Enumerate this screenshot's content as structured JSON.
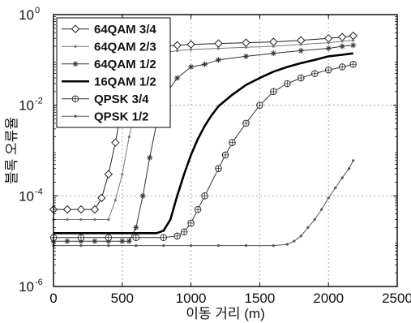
{
  "chart_data": {
    "type": "line",
    "xlabel": "이동 거리 (m)",
    "ylabel": "블록 오류율",
    "xlim": [
      0,
      2500
    ],
    "ylim": [
      1e-06,
      1
    ],
    "yscale": "log",
    "grid": true,
    "legend_position": "top-left",
    "xticks": [
      0,
      500,
      1000,
      1500,
      2000,
      2500
    ],
    "xtick_labels": [
      "0",
      "500",
      "1000",
      "1500",
      "2000",
      "2500"
    ],
    "yticks": [
      1e-06,
      0.0001,
      0.01,
      1
    ],
    "ytick_labels": [
      {
        "base": "10",
        "exp": "-6"
      },
      {
        "base": "10",
        "exp": "-4"
      },
      {
        "base": "10",
        "exp": "-2"
      },
      {
        "base": "10",
        "exp": "0"
      }
    ],
    "series": [
      {
        "name": "64QAM 3/4",
        "marker": "diamond",
        "color": "#222222",
        "width": 1,
        "x": [
          0,
          100,
          200,
          300,
          350,
          400,
          450,
          500,
          550,
          600,
          650,
          700,
          800,
          900,
          1000,
          1200,
          1400,
          1600,
          1800,
          2000,
          2100,
          2180
        ],
        "y": [
          5e-05,
          5e-05,
          5e-05,
          5e-05,
          9e-05,
          0.0003,
          0.0015,
          0.01,
          0.04,
          0.1,
          0.16,
          0.19,
          0.2,
          0.21,
          0.22,
          0.23,
          0.24,
          0.25,
          0.27,
          0.3,
          0.32,
          0.34
        ]
      },
      {
        "name": "64QAM 2/3",
        "marker": "dot",
        "color": "#777777",
        "width": 1,
        "x": [
          0,
          100,
          200,
          300,
          400,
          450,
          500,
          550,
          600,
          650,
          700,
          800,
          900,
          1000,
          1200,
          1400,
          1600,
          1800,
          2000,
          2100,
          2180
        ],
        "y": [
          3e-05,
          3e-05,
          3e-05,
          3e-05,
          3e-05,
          8e-05,
          0.0003,
          0.002,
          0.01,
          0.04,
          0.09,
          0.14,
          0.16,
          0.17,
          0.18,
          0.19,
          0.2,
          0.22,
          0.24,
          0.26,
          0.27
        ]
      },
      {
        "name": "64QAM 1/2",
        "marker": "star",
        "color": "#333333",
        "width": 1,
        "x": [
          0,
          100,
          200,
          300,
          400,
          500,
          550,
          600,
          650,
          700,
          750,
          800,
          900,
          1000,
          1100,
          1200,
          1400,
          1600,
          1800,
          2000,
          2100,
          2180
        ],
        "y": [
          1e-05,
          1e-05,
          1e-05,
          1e-05,
          1e-05,
          1e-05,
          1e-05,
          2e-05,
          0.0001,
          0.0007,
          0.004,
          0.015,
          0.04,
          0.07,
          0.08,
          0.1,
          0.12,
          0.14,
          0.16,
          0.18,
          0.2,
          0.21
        ]
      },
      {
        "name": "16QAM 1/2",
        "marker": "none",
        "color": "#000000",
        "width": 2.6,
        "x": [
          0,
          200,
          400,
          600,
          750,
          800,
          850,
          900,
          950,
          1000,
          1050,
          1100,
          1150,
          1200,
          1300,
          1400,
          1500,
          1600,
          1700,
          1800,
          1900,
          2000,
          2100,
          2180
        ],
        "y": [
          1.5e-05,
          1.5e-05,
          1.5e-05,
          1.5e-05,
          1.5e-05,
          1.7e-05,
          3e-05,
          0.0001,
          0.0003,
          0.0008,
          0.0018,
          0.0035,
          0.006,
          0.0095,
          0.017,
          0.028,
          0.04,
          0.055,
          0.07,
          0.085,
          0.1,
          0.12,
          0.13,
          0.14
        ]
      },
      {
        "name": "QPSK 3/4",
        "marker": "circle",
        "color": "#333333",
        "width": 1,
        "x": [
          0,
          200,
          400,
          600,
          800,
          900,
          950,
          1000,
          1050,
          1100,
          1200,
          1250,
          1300,
          1400,
          1500,
          1600,
          1700,
          1800,
          1900,
          2000,
          2100,
          2180
        ],
        "y": [
          1.2e-05,
          1.2e-05,
          1.2e-05,
          1.2e-05,
          1.2e-05,
          1.3e-05,
          1.6e-05,
          2.5e-05,
          5e-05,
          0.0001,
          0.0004,
          0.0008,
          0.0015,
          0.004,
          0.01,
          0.02,
          0.03,
          0.04,
          0.05,
          0.06,
          0.07,
          0.08
        ]
      },
      {
        "name": "QPSK 1/2",
        "marker": "dot",
        "color": "#555555",
        "width": 1,
        "x": [
          0,
          200,
          400,
          600,
          800,
          1000,
          1200,
          1400,
          1600,
          1700,
          1750,
          1800,
          1850,
          1900,
          1950,
          2000,
          2050,
          2100,
          2150,
          2180
        ],
        "y": [
          8e-06,
          8e-06,
          8e-06,
          8e-06,
          8e-06,
          8e-06,
          8e-06,
          8e-06,
          8e-06,
          8.5e-06,
          1e-05,
          1.3e-05,
          2e-05,
          3e-05,
          5e-05,
          9e-05,
          0.00015,
          0.00025,
          0.0004,
          0.0006
        ]
      }
    ]
  }
}
